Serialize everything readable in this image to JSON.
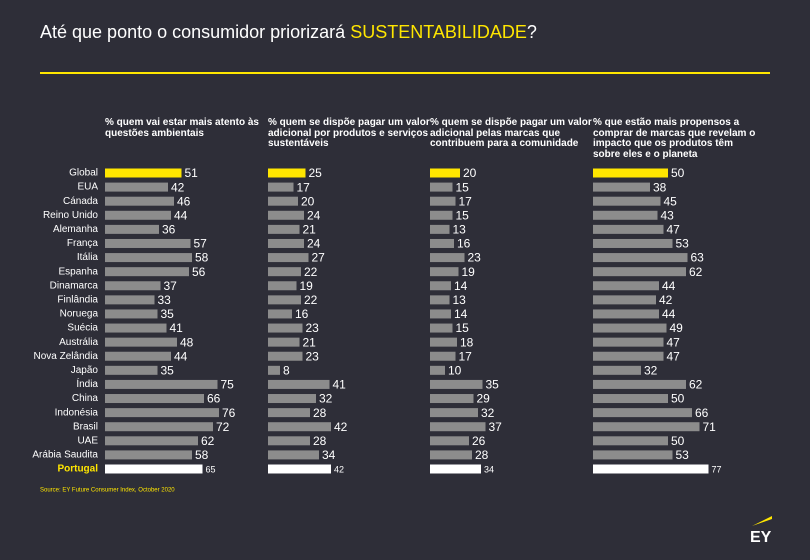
{
  "title_parts": [
    "Até que ponto o consumidor priorizará ",
    "SUSTENTABILIDADE",
    "?"
  ],
  "source": "Source: EY Future Consumer Index, October 2020",
  "logo": "EY",
  "categories": [
    "Global",
    "EUA",
    "Cánada",
    "Reino Unido",
    "Alemanha",
    "França",
    "Itália",
    "Espanha",
    "Dinamarca",
    "Finlândia",
    "Noruega",
    "Suécia",
    "Austrália",
    "Nova Zelândia",
    "Japão",
    "Índia",
    "China",
    "Indonésia",
    "Brasil",
    "UAE",
    "Arábia Saudita",
    "Portugal"
  ],
  "bar_colors": [
    "#ffe600",
    "#8c8c8c",
    "#8c8c8c",
    "#8c8c8c",
    "#8c8c8c",
    "#8c8c8c",
    "#8c8c8c",
    "#8c8c8c",
    "#8c8c8c",
    "#8c8c8c",
    "#8c8c8c",
    "#8c8c8c",
    "#8c8c8c",
    "#8c8c8c",
    "#8c8c8c",
    "#8c8c8c",
    "#8c8c8c",
    "#8c8c8c",
    "#8c8c8c",
    "#8c8c8c",
    "#8c8c8c",
    "#ffffff"
  ],
  "category_label_colors": [
    "#ffffff",
    "#ffffff",
    "#ffffff",
    "#ffffff",
    "#ffffff",
    "#ffffff",
    "#ffffff",
    "#ffffff",
    "#ffffff",
    "#ffffff",
    "#ffffff",
    "#ffffff",
    "#ffffff",
    "#ffffff",
    "#ffffff",
    "#ffffff",
    "#ffffff",
    "#ffffff",
    "#ffffff",
    "#ffffff",
    "#ffffff",
    "#ffe600"
  ],
  "chart_data": [
    {
      "type": "bar",
      "title": "% quem vai estar mais atento às questões ambientais",
      "xlim": [
        0,
        100
      ],
      "values": [
        51,
        42,
        46,
        44,
        36,
        57,
        58,
        56,
        37,
        33,
        35,
        41,
        48,
        44,
        35,
        75,
        66,
        76,
        72,
        62,
        58,
        65
      ]
    },
    {
      "type": "bar",
      "title": "% quem se dispõe pagar um valor adicional por produtos e serviços sustentáveis",
      "xlim": [
        0,
        100
      ],
      "values": [
        25,
        17,
        20,
        24,
        21,
        24,
        27,
        22,
        19,
        22,
        16,
        23,
        21,
        23,
        8,
        41,
        32,
        28,
        42,
        28,
        34,
        42
      ]
    },
    {
      "type": "bar",
      "title": "% quem se dispõe pagar um valor adicional pelas marcas que contribuem para a comunidade",
      "xlim": [
        0,
        100
      ],
      "values": [
        20,
        15,
        17,
        15,
        13,
        16,
        23,
        19,
        14,
        13,
        14,
        15,
        18,
        17,
        10,
        35,
        29,
        32,
        37,
        26,
        28,
        34
      ]
    },
    {
      "type": "bar",
      "title": "% que estão mais propensos a comprar de marcas que revelam o impacto que os produtos têm sobre eles e o planeta",
      "xlim": [
        0,
        100
      ],
      "values": [
        50,
        38,
        45,
        43,
        47,
        53,
        63,
        62,
        44,
        42,
        44,
        49,
        47,
        47,
        32,
        62,
        50,
        66,
        71,
        50,
        53,
        77
      ]
    }
  ]
}
